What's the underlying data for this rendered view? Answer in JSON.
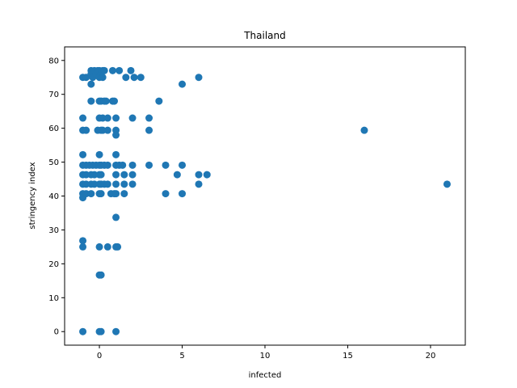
{
  "chart_data": {
    "type": "scatter",
    "title": "Thailand",
    "xlabel": "infected",
    "ylabel": "stringency index",
    "xlim": [
      -2.1,
      22.1
    ],
    "ylim": [
      -4,
      84
    ],
    "xticks": [
      0,
      5,
      10,
      15,
      20
    ],
    "yticks": [
      0,
      10,
      20,
      30,
      40,
      50,
      60,
      70,
      80
    ],
    "grid": false,
    "legend": "none",
    "color": "#1f77b4",
    "points": [
      [
        -1,
        75
      ],
      [
        -0.8,
        75
      ],
      [
        -0.5,
        76
      ],
      [
        -0.5,
        77
      ],
      [
        -0.4,
        75
      ],
      [
        -0.3,
        77
      ],
      [
        -0.2,
        76
      ],
      [
        -0.1,
        77
      ],
      [
        0,
        75
      ],
      [
        0,
        77
      ],
      [
        0.1,
        76
      ],
      [
        0.2,
        77
      ],
      [
        0.2,
        75
      ],
      [
        0.3,
        77
      ],
      [
        0.8,
        77
      ],
      [
        1.2,
        77
      ],
      [
        1.6,
        75
      ],
      [
        1.9,
        77
      ],
      [
        2.1,
        75
      ],
      [
        2.5,
        75
      ],
      [
        6,
        75
      ],
      [
        -0.5,
        73
      ],
      [
        5,
        73
      ],
      [
        -0.5,
        68
      ],
      [
        0,
        68
      ],
      [
        0.1,
        68
      ],
      [
        0.3,
        68
      ],
      [
        0.4,
        68
      ],
      [
        0.8,
        68
      ],
      [
        0.9,
        68
      ],
      [
        3.6,
        68
      ],
      [
        -1,
        63
      ],
      [
        0,
        63
      ],
      [
        0.2,
        63
      ],
      [
        0.5,
        63
      ],
      [
        1,
        63
      ],
      [
        2,
        63
      ],
      [
        3,
        63
      ],
      [
        -1,
        59.4
      ],
      [
        -0.8,
        59.4
      ],
      [
        -0.1,
        59.4
      ],
      [
        0.1,
        59.4
      ],
      [
        0.2,
        59.4
      ],
      [
        0.5,
        59.4
      ],
      [
        1,
        59.4
      ],
      [
        1,
        58
      ],
      [
        3,
        59.4
      ],
      [
        16,
        59.4
      ],
      [
        -1,
        52.2
      ],
      [
        0,
        52.2
      ],
      [
        1,
        52.2
      ],
      [
        -1,
        49.1
      ],
      [
        -0.8,
        49.1
      ],
      [
        -0.6,
        49.1
      ],
      [
        -0.4,
        49.1
      ],
      [
        -0.2,
        49.1
      ],
      [
        0,
        49.1
      ],
      [
        0.1,
        49.1
      ],
      [
        0.3,
        49.1
      ],
      [
        0.5,
        49.1
      ],
      [
        1,
        49.1
      ],
      [
        1.2,
        49.1
      ],
      [
        1.4,
        49.1
      ],
      [
        2,
        49.1
      ],
      [
        3,
        49.1
      ],
      [
        4,
        49.1
      ],
      [
        5,
        49.1
      ],
      [
        -1,
        46.3
      ],
      [
        -0.8,
        46.3
      ],
      [
        -0.5,
        46.3
      ],
      [
        -0.3,
        46.3
      ],
      [
        0,
        46.3
      ],
      [
        0.1,
        46.3
      ],
      [
        1,
        46.3
      ],
      [
        1.5,
        46.3
      ],
      [
        2,
        46.3
      ],
      [
        4.7,
        46.3
      ],
      [
        6,
        46.3
      ],
      [
        6.5,
        46.3
      ],
      [
        -1,
        43.5
      ],
      [
        -0.8,
        43.5
      ],
      [
        -0.5,
        43.5
      ],
      [
        -0.3,
        43.5
      ],
      [
        0,
        43.5
      ],
      [
        0.1,
        43.5
      ],
      [
        0.3,
        43.5
      ],
      [
        0.5,
        43.5
      ],
      [
        1,
        43.5
      ],
      [
        1.5,
        43.5
      ],
      [
        2,
        43.5
      ],
      [
        6,
        43.5
      ],
      [
        21,
        43.5
      ],
      [
        -1,
        40.7
      ],
      [
        -0.8,
        40.7
      ],
      [
        -0.5,
        40.7
      ],
      [
        0,
        40.7
      ],
      [
        0.1,
        40.7
      ],
      [
        0.7,
        40.7
      ],
      [
        0.9,
        40.7
      ],
      [
        1,
        40.7
      ],
      [
        1.5,
        40.7
      ],
      [
        4,
        40.7
      ],
      [
        5,
        40.7
      ],
      [
        -1,
        39.5
      ],
      [
        1,
        33.7
      ],
      [
        -1,
        26.8
      ],
      [
        -1,
        25
      ],
      [
        0,
        25
      ],
      [
        0.5,
        25
      ],
      [
        1,
        25
      ],
      [
        1.1,
        25
      ],
      [
        0,
        16.7
      ],
      [
        0.1,
        16.7
      ],
      [
        -1,
        0
      ],
      [
        0,
        0
      ],
      [
        0.1,
        0
      ],
      [
        1,
        0
      ]
    ]
  }
}
